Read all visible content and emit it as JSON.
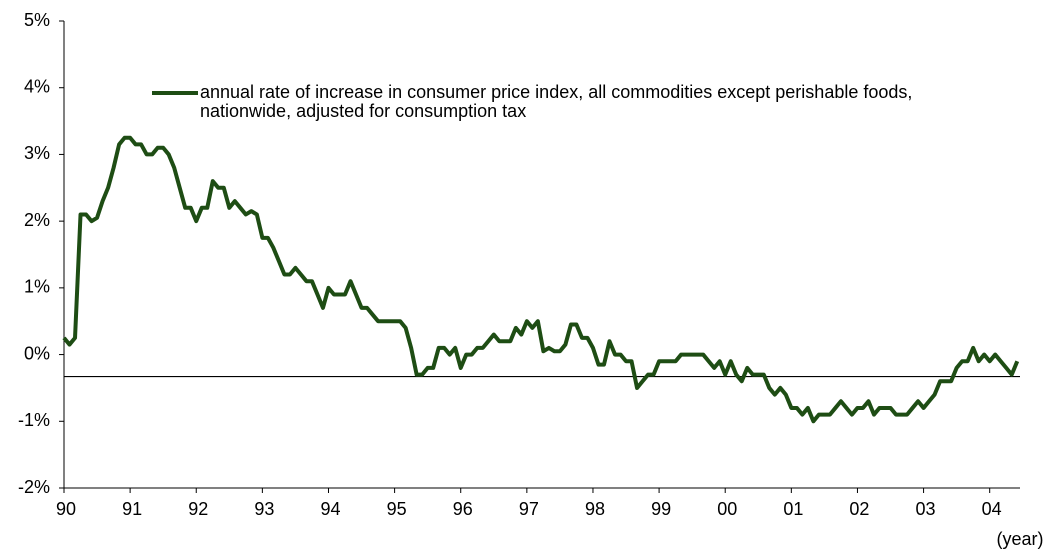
{
  "chart_data": {
    "type": "line",
    "x_label": "(year)",
    "categories": [
      "90",
      null,
      null,
      null,
      null,
      null,
      null,
      null,
      null,
      null,
      null,
      null,
      "91",
      null,
      null,
      null,
      null,
      null,
      null,
      null,
      null,
      null,
      null,
      null,
      "92",
      null,
      null,
      null,
      null,
      null,
      null,
      null,
      null,
      null,
      null,
      null,
      "93",
      null,
      null,
      null,
      null,
      null,
      null,
      null,
      null,
      null,
      null,
      null,
      "94",
      null,
      null,
      null,
      null,
      null,
      null,
      null,
      null,
      null,
      null,
      null,
      "95",
      null,
      null,
      null,
      null,
      null,
      null,
      null,
      null,
      null,
      null,
      null,
      "96",
      null,
      null,
      null,
      null,
      null,
      null,
      null,
      null,
      null,
      null,
      null,
      "97",
      null,
      null,
      null,
      null,
      null,
      null,
      null,
      null,
      null,
      null,
      null,
      "98",
      null,
      null,
      null,
      null,
      null,
      null,
      null,
      null,
      null,
      null,
      null,
      "99",
      null,
      null,
      null,
      null,
      null,
      null,
      null,
      null,
      null,
      null,
      null,
      "00",
      null,
      null,
      null,
      null,
      null,
      null,
      null,
      null,
      null,
      null,
      null,
      "01",
      null,
      null,
      null,
      null,
      null,
      null,
      null,
      null,
      null,
      null,
      null,
      "02",
      null,
      null,
      null,
      null,
      null,
      null,
      null,
      null,
      null,
      null,
      null,
      "03",
      null,
      null,
      null,
      null,
      null,
      null,
      null,
      null,
      null,
      null,
      null,
      "04",
      null,
      null,
      null,
      null,
      null
    ],
    "series": [
      {
        "name": "annual rate of increase in consumer price index, all commodities except perishable foods, nationwide, adjusted for consumption tax",
        "color": "#1e4d14",
        "values": [
          0.25,
          0.15,
          0.25,
          2.1,
          2.1,
          2.0,
          2.05,
          2.3,
          2.5,
          2.8,
          3.15,
          3.25,
          3.25,
          3.15,
          3.15,
          3.0,
          3.0,
          3.1,
          3.1,
          3.0,
          2.8,
          2.5,
          2.2,
          2.2,
          2.0,
          2.2,
          2.2,
          2.6,
          2.5,
          2.5,
          2.2,
          2.3,
          2.2,
          2.1,
          2.15,
          2.1,
          1.75,
          1.75,
          1.6,
          1.4,
          1.2,
          1.2,
          1.3,
          1.2,
          1.1,
          1.1,
          0.9,
          0.7,
          1.0,
          0.9,
          0.9,
          0.9,
          1.1,
          0.9,
          0.7,
          0.7,
          0.6,
          0.5,
          0.5,
          0.5,
          0.5,
          0.5,
          0.4,
          0.1,
          -0.3,
          -0.3,
          -0.2,
          -0.2,
          0.1,
          0.1,
          0.0,
          0.1,
          -0.2,
          0.0,
          0.0,
          0.1,
          0.1,
          0.2,
          0.3,
          0.2,
          0.2,
          0.2,
          0.4,
          0.3,
          0.5,
          0.4,
          0.5,
          0.05,
          0.1,
          0.05,
          0.05,
          0.15,
          0.45,
          0.45,
          0.25,
          0.25,
          0.1,
          -0.15,
          -0.15,
          0.2,
          0.0,
          0.0,
          -0.1,
          -0.1,
          -0.5,
          -0.4,
          -0.3,
          -0.3,
          -0.1,
          -0.1,
          -0.1,
          -0.1,
          0.0,
          0.0,
          0.0,
          0.0,
          0.0,
          -0.1,
          -0.2,
          -0.1,
          -0.3,
          -0.1,
          -0.3,
          -0.4,
          -0.2,
          -0.3,
          -0.3,
          -0.3,
          -0.5,
          -0.6,
          -0.5,
          -0.6,
          -0.8,
          -0.8,
          -0.9,
          -0.8,
          -1.0,
          -0.9,
          -0.9,
          -0.9,
          -0.8,
          -0.7,
          -0.8,
          -0.9,
          -0.8,
          -0.8,
          -0.7,
          -0.9,
          -0.8,
          -0.8,
          -0.8,
          -0.9,
          -0.9,
          -0.9,
          -0.8,
          -0.7,
          -0.8,
          -0.7,
          -0.6,
          -0.4,
          -0.4,
          -0.4,
          -0.2,
          -0.1,
          -0.1,
          0.1,
          -0.1,
          0.0,
          -0.1,
          0.0,
          -0.1,
          -0.2,
          -0.3,
          -0.1
        ]
      }
    ],
    "reference_line": -0.33,
    "ylim": [
      -2,
      5
    ],
    "yticks": [
      {
        "value": -2,
        "label": "-2%"
      },
      {
        "value": -1,
        "label": "-1%"
      },
      {
        "value": 0,
        "label": "0%"
      },
      {
        "value": 1,
        "label": "1%"
      },
      {
        "value": 2,
        "label": "2%"
      },
      {
        "value": 3,
        "label": "3%"
      },
      {
        "value": 4,
        "label": "4%"
      },
      {
        "value": 5,
        "label": "5%"
      }
    ],
    "grid": false,
    "legend": "top-left"
  }
}
